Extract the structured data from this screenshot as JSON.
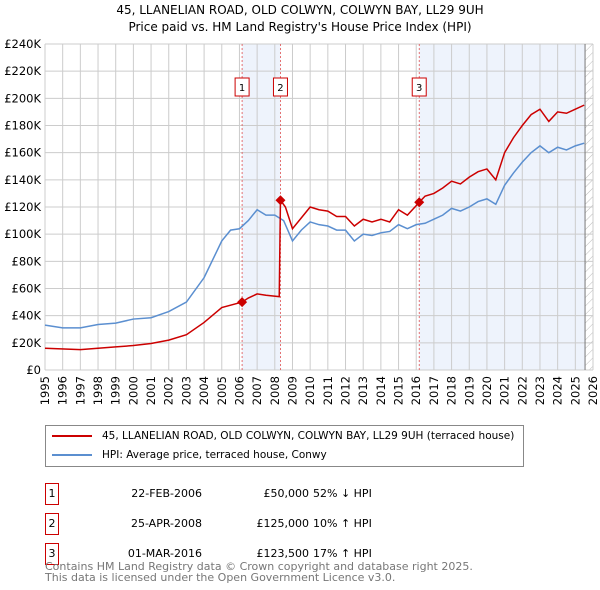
{
  "chart_data": {
    "type": "line",
    "title": "45, LLANELIAN ROAD, OLD COLWYN, COLWYN BAY, LL29 9UH",
    "subtitle": "Price paid vs. HM Land Registry's House Price Index (HPI)",
    "xlim": [
      1995,
      2026
    ],
    "ylim": [
      0,
      240000
    ],
    "y_ticks": [
      "£0",
      "£20K",
      "£40K",
      "£60K",
      "£80K",
      "£100K",
      "£120K",
      "£140K",
      "£160K",
      "£180K",
      "£200K",
      "£220K",
      "£240K"
    ],
    "x_ticks": [
      "1995",
      "1996",
      "1997",
      "1998",
      "1999",
      "2000",
      "2001",
      "2002",
      "2003",
      "2004",
      "2005",
      "2006",
      "2007",
      "2008",
      "2009",
      "2010",
      "2011",
      "2012",
      "2013",
      "2014",
      "2015",
      "2016",
      "2017",
      "2018",
      "2019",
      "2020",
      "2021",
      "2022",
      "2023",
      "2024",
      "2025",
      "2026"
    ],
    "grid": true,
    "series": [
      {
        "name": "45, LLANELIAN ROAD, OLD COLWYN, COLWYN BAY, LL29 9UH (terraced house)",
        "color": "#cc0000",
        "x": [
          1995,
          1997,
          1999,
          2000,
          2001,
          2002,
          2003,
          2004,
          2005,
          2006.15,
          2006.5,
          2007,
          2007.5,
          2008.25,
          2008.32,
          2008.6,
          2009,
          2009.5,
          2010,
          2010.5,
          2011,
          2011.5,
          2012,
          2012.5,
          2013,
          2013.5,
          2014,
          2014.5,
          2015,
          2015.5,
          2016,
          2016.17,
          2016.5,
          2017,
          2017.5,
          2018,
          2018.5,
          2019,
          2019.5,
          2020,
          2020.5,
          2021,
          2021.5,
          2022,
          2022.5,
          2023,
          2023.5,
          2024,
          2024.5,
          2025,
          2025.5
        ],
        "y": [
          16000,
          15000,
          17000,
          18000,
          19500,
          22000,
          26000,
          35000,
          46000,
          50000,
          53000,
          56000,
          55000,
          54000,
          125000,
          120000,
          104000,
          112000,
          120000,
          118000,
          117000,
          113000,
          113000,
          106000,
          111000,
          109000,
          111000,
          109000,
          118000,
          114000,
          121000,
          123500,
          128000,
          130000,
          134000,
          139000,
          137000,
          142000,
          146000,
          148000,
          140000,
          160000,
          171000,
          180000,
          188000,
          192000,
          183000,
          190000,
          189000,
          192000,
          195000
        ]
      },
      {
        "name": "HPI: Average price, terraced house, Conwy",
        "color": "#5b8fd0",
        "x": [
          1995,
          1996,
          1997,
          1998,
          1999,
          2000,
          2001,
          2002,
          2003,
          2004,
          2005,
          2005.5,
          2006,
          2006.5,
          2007,
          2007.5,
          2008,
          2008.5,
          2009,
          2009.5,
          2010,
          2010.5,
          2011,
          2011.5,
          2012,
          2012.5,
          2013,
          2013.5,
          2014,
          2014.5,
          2015,
          2015.5,
          2016,
          2016.5,
          2017,
          2017.5,
          2018,
          2018.5,
          2019,
          2019.5,
          2020,
          2020.5,
          2021,
          2021.5,
          2022,
          2022.5,
          2023,
          2023.5,
          2024,
          2024.5,
          2025,
          2025.5
        ],
        "y": [
          33000,
          31000,
          31000,
          33500,
          34500,
          37500,
          38500,
          43000,
          50000,
          68000,
          95000,
          103000,
          104000,
          110000,
          118000,
          114000,
          114000,
          110000,
          95000,
          103000,
          109000,
          107000,
          106000,
          103000,
          103000,
          95000,
          100000,
          99000,
          101000,
          102000,
          107000,
          104000,
          107000,
          108000,
          111000,
          114000,
          119000,
          117000,
          120000,
          124000,
          126000,
          122000,
          136000,
          145000,
          153000,
          160000,
          165000,
          160000,
          164000,
          162000,
          165000,
          167000
        ]
      }
    ],
    "sales": [
      {
        "label": "1",
        "x": 2006.15,
        "y": 50000,
        "date": "22-FEB-2006",
        "price": "£50,000",
        "hpi": "52% ↓ HPI"
      },
      {
        "label": "2",
        "x": 2008.32,
        "y": 125000,
        "date": "25-APR-2008",
        "price": "£125,000",
        "hpi": "10% ↑ HPI"
      },
      {
        "label": "3",
        "x": 2016.17,
        "y": 123500,
        "date": "01-MAR-2016",
        "price": "£123,500",
        "hpi": "17% ↑ HPI"
      }
    ],
    "shaded_ranges": [
      [
        2006.15,
        2008.32
      ],
      [
        2016.17,
        2025.55
      ]
    ],
    "hatched_from": 2025.55
  },
  "footer": {
    "line1": "Contains HM Land Registry data © Crown copyright and database right 2025.",
    "line2": "This data is licensed under the Open Government Licence v3.0."
  }
}
